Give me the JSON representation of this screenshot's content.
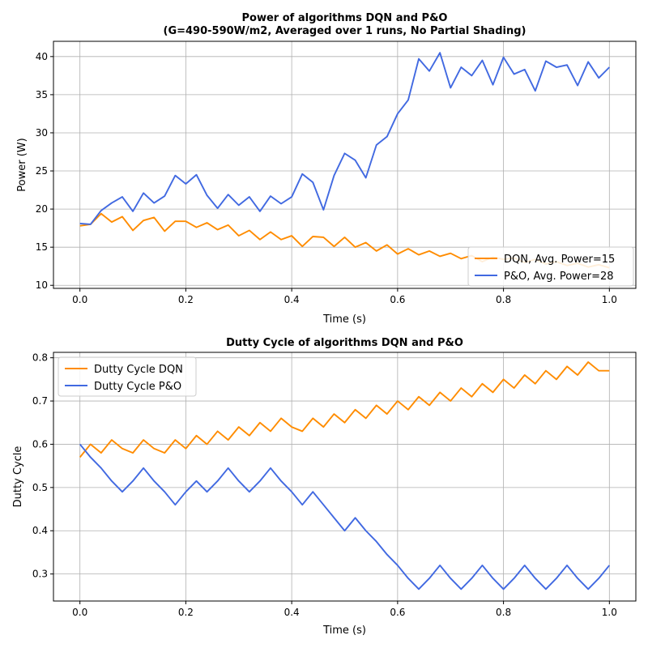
{
  "chart_data": [
    {
      "type": "line",
      "title_lines": [
        "Power of algorithms DQN and P&O",
        "(G=490-590W/m2, Averaged over 1 runs, No Partial Shading)"
      ],
      "xlabel": "Time (s)",
      "ylabel": "Power (W)",
      "xlim": [
        -0.05,
        1.05
      ],
      "ylim": [
        9.6,
        42
      ],
      "x_ticks": [
        0.0,
        0.2,
        0.4,
        0.6,
        0.8,
        1.0
      ],
      "x_tick_labels": [
        "0.0",
        "0.2",
        "0.4",
        "0.6",
        "0.8",
        "1.0"
      ],
      "y_ticks": [
        10,
        15,
        20,
        25,
        30,
        35,
        40
      ],
      "y_tick_labels": [
        "10",
        "15",
        "20",
        "25",
        "30",
        "35",
        "40"
      ],
      "grid": true,
      "legend_position": "lower-right",
      "x": [
        0.0,
        0.02,
        0.04,
        0.06,
        0.08,
        0.1,
        0.12,
        0.14,
        0.16,
        0.18,
        0.2,
        0.22,
        0.24,
        0.26,
        0.28,
        0.3,
        0.32,
        0.34,
        0.36,
        0.38,
        0.4,
        0.42,
        0.44,
        0.46,
        0.48,
        0.5,
        0.52,
        0.54,
        0.56,
        0.58,
        0.6,
        0.62,
        0.64,
        0.66,
        0.68,
        0.7,
        0.72,
        0.74,
        0.76,
        0.78,
        0.8,
        0.82,
        0.84,
        0.86,
        0.88,
        0.9,
        0.92,
        0.94,
        0.96,
        0.98,
        1.0
      ],
      "series": [
        {
          "name": "DQN, Avg. Power=15",
          "color": "#ff8c00",
          "values": [
            17.8,
            18.0,
            19.4,
            18.3,
            19.0,
            17.2,
            18.5,
            18.9,
            17.1,
            18.4,
            18.4,
            17.6,
            18.2,
            17.3,
            17.9,
            16.5,
            17.2,
            16.0,
            17.0,
            16.0,
            16.5,
            15.1,
            16.4,
            16.3,
            15.1,
            16.3,
            15.0,
            15.6,
            14.5,
            15.3,
            14.1,
            14.8,
            14.0,
            14.5,
            13.8,
            14.2,
            13.5,
            13.9,
            13.1,
            13.7,
            13.4,
            13.6,
            13.0,
            13.4,
            12.8,
            13.1,
            12.6,
            12.9,
            12.4,
            12.7,
            12.3
          ]
        },
        {
          "name": "P&O, Avg. Power=28",
          "color": "#4169e1",
          "values": [
            18.1,
            18.0,
            19.8,
            20.8,
            21.6,
            19.7,
            22.1,
            20.8,
            21.7,
            24.4,
            23.3,
            24.5,
            21.8,
            20.1,
            21.9,
            20.5,
            21.6,
            19.7,
            21.7,
            20.7,
            21.6,
            24.6,
            23.5,
            19.9,
            24.4,
            27.3,
            26.4,
            24.1,
            28.4,
            29.5,
            32.5,
            34.3,
            39.7,
            38.1,
            40.5,
            35.9,
            38.6,
            37.5,
            39.5,
            36.3,
            39.9,
            37.7,
            38.3,
            35.5,
            39.4,
            38.6,
            38.9,
            36.2,
            39.3,
            37.2,
            38.6
          ]
        }
      ]
    },
    {
      "type": "line",
      "title_lines": [
        "Dutty Cycle of algorithms DQN and P&O"
      ],
      "xlabel": "Time (s)",
      "ylabel": "Dutty Cycle",
      "xlim": [
        -0.05,
        1.05
      ],
      "ylim": [
        0.2375,
        0.8125
      ],
      "x_ticks": [
        0.0,
        0.2,
        0.4,
        0.6,
        0.8,
        1.0
      ],
      "x_tick_labels": [
        "0.0",
        "0.2",
        "0.4",
        "0.6",
        "0.8",
        "1.0"
      ],
      "y_ticks": [
        0.3,
        0.4,
        0.5,
        0.6,
        0.7,
        0.8
      ],
      "y_tick_labels": [
        "0.3",
        "0.4",
        "0.5",
        "0.6",
        "0.7",
        "0.8"
      ],
      "grid": true,
      "legend_position": "upper-left",
      "x": [
        0.0,
        0.02,
        0.04,
        0.06,
        0.08,
        0.1,
        0.12,
        0.14,
        0.16,
        0.18,
        0.2,
        0.22,
        0.24,
        0.26,
        0.28,
        0.3,
        0.32,
        0.34,
        0.36,
        0.38,
        0.4,
        0.42,
        0.44,
        0.46,
        0.48,
        0.5,
        0.52,
        0.54,
        0.56,
        0.58,
        0.6,
        0.62,
        0.64,
        0.66,
        0.68,
        0.7,
        0.72,
        0.74,
        0.76,
        0.78,
        0.8,
        0.82,
        0.84,
        0.86,
        0.88,
        0.9,
        0.92,
        0.94,
        0.96,
        0.98,
        1.0
      ],
      "series": [
        {
          "name": "Dutty Cycle DQN",
          "color": "#ff8c00",
          "values": [
            0.57,
            0.6,
            0.58,
            0.61,
            0.59,
            0.58,
            0.61,
            0.59,
            0.58,
            0.61,
            0.59,
            0.62,
            0.6,
            0.63,
            0.61,
            0.64,
            0.62,
            0.65,
            0.63,
            0.66,
            0.64,
            0.63,
            0.66,
            0.64,
            0.67,
            0.65,
            0.68,
            0.66,
            0.69,
            0.67,
            0.7,
            0.68,
            0.71,
            0.69,
            0.72,
            0.7,
            0.73,
            0.71,
            0.74,
            0.72,
            0.75,
            0.73,
            0.76,
            0.74,
            0.77,
            0.75,
            0.78,
            0.76,
            0.79,
            0.77,
            0.77
          ]
        },
        {
          "name": "Dutty Cycle P&O",
          "color": "#4169e1",
          "values": [
            0.6,
            0.57,
            0.545,
            0.515,
            0.49,
            0.515,
            0.545,
            0.515,
            0.49,
            0.46,
            0.49,
            0.515,
            0.49,
            0.515,
            0.545,
            0.515,
            0.49,
            0.515,
            0.545,
            0.515,
            0.49,
            0.46,
            0.49,
            0.46,
            0.43,
            0.4,
            0.43,
            0.4,
            0.375,
            0.345,
            0.32,
            0.29,
            0.265,
            0.29,
            0.32,
            0.29,
            0.265,
            0.29,
            0.32,
            0.29,
            0.265,
            0.29,
            0.32,
            0.29,
            0.265,
            0.29,
            0.32,
            0.29,
            0.265,
            0.29,
            0.32
          ]
        }
      ]
    }
  ]
}
